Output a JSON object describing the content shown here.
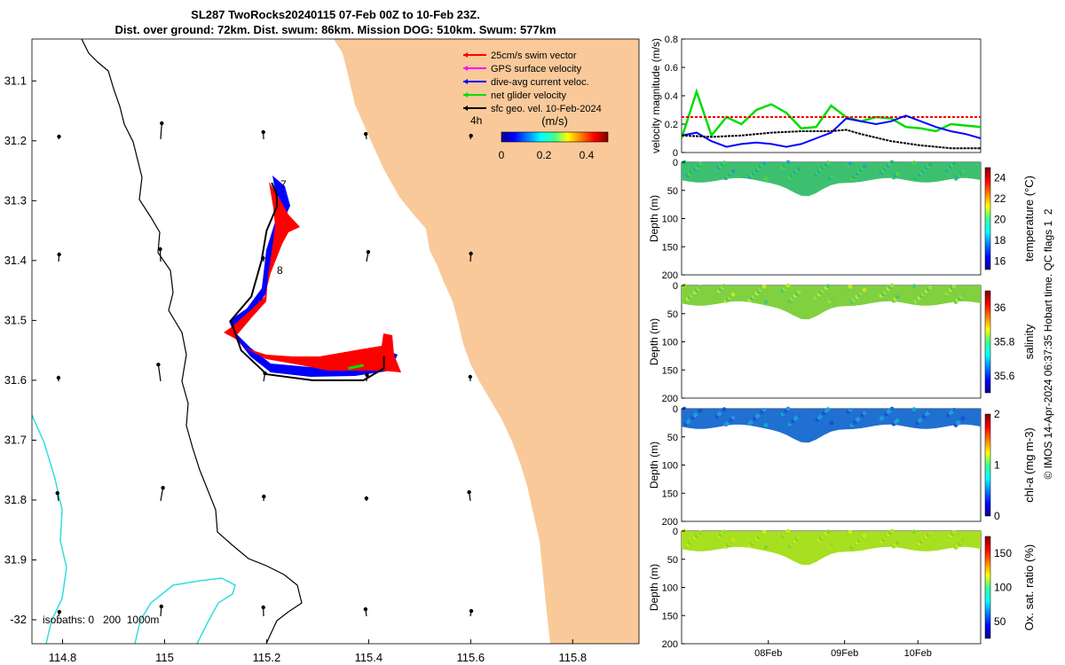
{
  "header": {
    "title_line1": "SL287 TwoRocks20240115 07-Feb 00Z to 10-Feb 23Z.",
    "title_line2": "Dist. over ground: 72km. Dist. swum: 86km. Mission DOG: 510km. Swum: 577km"
  },
  "side_note": "© IMOS 14-Apr-2024 06:37:35 Hobart time. QC flags 1  2",
  "colors": {
    "land": "#F9C99A",
    "swim_vector": "#ff0000",
    "gps_velocity": "#ff00ff",
    "current": "#0000ff",
    "net_velocity": "#00dd00",
    "geostrophic": "#000000",
    "isobath_200": "#000000",
    "isobath_1000": "#33dddd"
  },
  "chart_data": [
    {
      "type": "map",
      "x_ticks": [
        "114.8",
        "115",
        "115.2",
        "115.4",
        "115.6",
        "115.8"
      ],
      "y_ticks": [
        "31.1",
        "31.2",
        "31.3",
        "31.4",
        "31.5",
        "31.6",
        "31.7",
        "31.8",
        "31.9",
        "-32"
      ],
      "xlim": [
        114.74,
        115.93
      ],
      "ylim": [
        -32.04,
        -31.03
      ],
      "legend": [
        {
          "label": "25cm/s swim vector",
          "color": "#ff0000"
        },
        {
          "label": "GPS surface velocity",
          "color": "#ff00ff"
        },
        {
          "label": "dive-avg current veloc.",
          "color": "#0000ff"
        },
        {
          "label": "net glider velocity",
          "color": "#00dd00"
        },
        {
          "label": "sfc geo. vel. 10-Feb-2024",
          "color": "#000000"
        }
      ],
      "legend_placement": "top-right",
      "colorbar": {
        "label": "(m/s)",
        "ticks": [
          "0",
          "0.2",
          "0.4"
        ],
        "range": [
          0,
          0.5
        ]
      },
      "time_marker": "4h",
      "day_labels": [
        {
          "text": "7",
          "lon": 115.22,
          "lat": -31.27
        },
        {
          "text": "8",
          "lon": 115.23,
          "lat": -31.41
        }
      ],
      "isobaths_label": "isobaths: 0   200  1000m",
      "track": [
        {
          "lon": 115.21,
          "lat": -31.27
        },
        {
          "lon": 115.22,
          "lat": -31.29
        },
        {
          "lon": 115.22,
          "lat": -31.31
        },
        {
          "lon": 115.2,
          "lat": -31.35
        },
        {
          "lon": 115.19,
          "lat": -31.4
        },
        {
          "lon": 115.17,
          "lat": -31.46
        },
        {
          "lon": 115.13,
          "lat": -31.5
        },
        {
          "lon": 115.15,
          "lat": -31.55
        },
        {
          "lon": 115.2,
          "lat": -31.59
        },
        {
          "lon": 115.29,
          "lat": -31.6
        },
        {
          "lon": 115.39,
          "lat": -31.6
        },
        {
          "lon": 115.43,
          "lat": -31.58
        },
        {
          "lon": 115.43,
          "lat": -31.56
        }
      ],
      "net_velocity_segment": [
        {
          "lon": 115.36,
          "lat": -31.58
        },
        {
          "lon": 115.39,
          "lat": -31.575
        }
      ]
    },
    {
      "type": "line",
      "ylabel": "velocity magnitude (m/s)",
      "ylim": [
        0,
        0.8
      ],
      "y_ticks": [
        "0",
        "0.2",
        "0.4",
        "0.6",
        "0.8"
      ],
      "series": [
        {
          "color": "#00dd00",
          "x": [
            0,
            0.05,
            0.1,
            0.15,
            0.2,
            0.25,
            0.3,
            0.35,
            0.4,
            0.45,
            0.5,
            0.55,
            0.6,
            0.65,
            0.7,
            0.75,
            0.8,
            0.85,
            0.9,
            0.95,
            1.0
          ],
          "values": [
            0.1,
            0.43,
            0.12,
            0.25,
            0.2,
            0.3,
            0.34,
            0.28,
            0.17,
            0.18,
            0.33,
            0.25,
            0.22,
            0.25,
            0.24,
            0.18,
            0.17,
            0.15,
            0.2,
            0.19,
            0.18
          ]
        },
        {
          "color": "#ff0000",
          "x": [
            0,
            1
          ],
          "values": [
            0.25,
            0.25
          ]
        },
        {
          "color": "#0000ff",
          "x": [
            0,
            0.05,
            0.1,
            0.15,
            0.2,
            0.25,
            0.3,
            0.35,
            0.4,
            0.45,
            0.5,
            0.55,
            0.6,
            0.65,
            0.7,
            0.75,
            0.8,
            0.85,
            0.9,
            0.95,
            1.0
          ],
          "values": [
            0.12,
            0.14,
            0.08,
            0.04,
            0.06,
            0.07,
            0.06,
            0.04,
            0.06,
            0.1,
            0.14,
            0.24,
            0.22,
            0.2,
            0.22,
            0.26,
            0.22,
            0.18,
            0.15,
            0.13,
            0.1
          ]
        },
        {
          "color": "#000000",
          "x": [
            0,
            0.1,
            0.2,
            0.3,
            0.4,
            0.5,
            0.55,
            0.6,
            0.7,
            0.8,
            0.9,
            1.0
          ],
          "values": [
            0.12,
            0.11,
            0.12,
            0.14,
            0.15,
            0.15,
            0.16,
            0.13,
            0.08,
            0.05,
            0.03,
            0.03
          ]
        }
      ]
    },
    {
      "type": "heatmap",
      "variable": "temperature",
      "ylabel": "Depth (m)",
      "ylim": [
        200,
        0
      ],
      "y_ticks": [
        "0",
        "50",
        "100",
        "150",
        "200"
      ],
      "colorbar": {
        "label": "temperature (°C)",
        "ticks": [
          "16",
          "18",
          "20",
          "22",
          "24"
        ],
        "range": [
          15.2,
          25
        ]
      },
      "dominant_color": "#3cc070"
    },
    {
      "type": "heatmap",
      "variable": "salinity",
      "ylabel": "Depth (m)",
      "ylim": [
        200,
        0
      ],
      "y_ticks": [
        "0",
        "50",
        "100",
        "150",
        "200"
      ],
      "colorbar": {
        "label": "salinity",
        "ticks": [
          "35.6",
          "35.8",
          "36"
        ],
        "range": [
          35.5,
          36.1
        ]
      },
      "dominant_color": "#80d040"
    },
    {
      "type": "heatmap",
      "variable": "chlorophyll",
      "ylabel": "Depth (m)",
      "ylim": [
        200,
        0
      ],
      "y_ticks": [
        "0",
        "50",
        "100",
        "150",
        "200"
      ],
      "colorbar": {
        "label": "chl-a (mg m-3)",
        "ticks": [
          "0",
          "1",
          "2"
        ],
        "range": [
          0,
          2
        ]
      },
      "dominant_color": "#1f70d0"
    },
    {
      "type": "heatmap",
      "variable": "oxygen",
      "ylabel": "Depth (m)",
      "ylim": [
        200,
        0
      ],
      "y_ticks": [
        "0",
        "50",
        "100",
        "150",
        "200"
      ],
      "colorbar": {
        "label": "Ox. sat. ratio (%)",
        "ticks": [
          "50",
          "100",
          "150"
        ],
        "range": [
          25,
          175
        ]
      },
      "dominant_color": "#a6e020",
      "x_ticks": [
        "08Feb",
        "09Feb",
        "10Feb"
      ]
    }
  ]
}
